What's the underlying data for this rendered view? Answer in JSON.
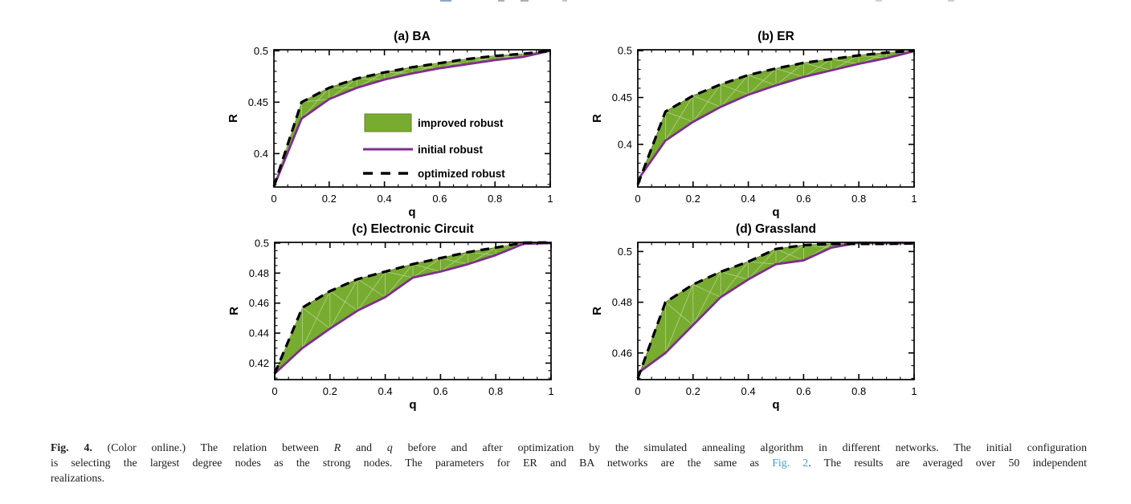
{
  "figure_label": "Fig. 4",
  "colors": {
    "improved_fill": "#77ac30",
    "improved_edge": "#6b7f23",
    "initial_line": "#7e2f8e",
    "optimized_line": "#000000",
    "axes": "#000000",
    "mesh_line": "#ffffff",
    "caption_text": "#1c1c1c",
    "link_blue": "#35a0d2"
  },
  "legend": {
    "items": [
      {
        "label": "improved robust",
        "marker": "patch",
        "color": "#77ac30"
      },
      {
        "label": "initial robust",
        "marker": "line",
        "color": "#7e2f8e"
      },
      {
        "label": "optimized robust",
        "marker": "dashed-line",
        "color": "#000000"
      }
    ],
    "position": "inside panel (a)"
  },
  "chart_data": [
    {
      "type": "area",
      "title": "(a) BA",
      "xlabel": "q",
      "ylabel": "R",
      "xlim": [
        0,
        1
      ],
      "ylim": [
        0.3675,
        0.501
      ],
      "xticks": [
        0,
        0.2,
        0.4,
        0.6,
        0.8,
        1
      ],
      "xtick_labels": [
        "0",
        "0.2",
        "0.4",
        "0.6",
        "0.8",
        "1"
      ],
      "x_minor_step": 0.05,
      "yticks": [
        0.4,
        0.45,
        0.5
      ],
      "ytick_labels": [
        "0.4",
        "0.45",
        "0.5"
      ],
      "y_minor_step": 0.01,
      "x": [
        0,
        0.1,
        0.2,
        0.3,
        0.4,
        0.5,
        0.6,
        0.7,
        0.8,
        0.9,
        1
      ],
      "series": [
        {
          "name": "initial robust",
          "values": [
            0.368,
            0.434,
            0.453,
            0.464,
            0.472,
            0.478,
            0.483,
            0.487,
            0.491,
            0.494,
            0.5
          ]
        },
        {
          "name": "optimized robust",
          "values": [
            0.368,
            0.45,
            0.464,
            0.473,
            0.479,
            0.484,
            0.488,
            0.492,
            0.495,
            0.497,
            0.5
          ]
        }
      ],
      "band": "improved robust (green region between the two curves)",
      "grid": false,
      "show_legend": true
    },
    {
      "type": "area",
      "title": "(b) ER",
      "xlabel": "q",
      "ylabel": "R",
      "xlim": [
        0,
        1
      ],
      "ylim": [
        0.3545,
        0.501
      ],
      "xticks": [
        0,
        0.2,
        0.4,
        0.6,
        0.8,
        1
      ],
      "xtick_labels": [
        "0",
        "0.2",
        "0.4",
        "0.6",
        "0.8",
        "1"
      ],
      "x_minor_step": 0.05,
      "yticks": [
        0.4,
        0.45,
        0.5
      ],
      "ytick_labels": [
        "0.4",
        "0.45",
        "0.5"
      ],
      "y_minor_step": 0.01,
      "x": [
        0,
        0.1,
        0.2,
        0.3,
        0.4,
        0.5,
        0.6,
        0.7,
        0.8,
        0.9,
        1
      ],
      "series": [
        {
          "name": "initial robust",
          "values": [
            0.362,
            0.404,
            0.424,
            0.44,
            0.453,
            0.463,
            0.472,
            0.479,
            0.486,
            0.492,
            0.4995
          ]
        },
        {
          "name": "optimized robust",
          "values": [
            0.357,
            0.435,
            0.452,
            0.464,
            0.474,
            0.481,
            0.487,
            0.491,
            0.495,
            0.498,
            0.5
          ]
        }
      ],
      "band": "improved robust (green region between the two curves)",
      "grid": false,
      "show_legend": false
    },
    {
      "type": "area",
      "title": "(c) Electronic Circuit",
      "xlabel": "q",
      "ylabel": "R",
      "xlim": [
        0,
        1
      ],
      "ylim": [
        0.409,
        0.5005
      ],
      "xticks": [
        0,
        0.2,
        0.4,
        0.6,
        0.8,
        1
      ],
      "xtick_labels": [
        "0",
        "0.2",
        "0.4",
        "0.6",
        "0.8",
        "1"
      ],
      "x_minor_step": 0.05,
      "yticks": [
        0.42,
        0.44,
        0.46,
        0.48,
        0.5
      ],
      "ytick_labels": [
        "0.42",
        "0.44",
        "0.46",
        "0.48",
        "0.5"
      ],
      "y_minor_step": 0.005,
      "x": [
        0,
        0.1,
        0.2,
        0.3,
        0.4,
        0.5,
        0.6,
        0.7,
        0.8,
        0.9,
        1
      ],
      "series": [
        {
          "name": "initial robust",
          "values": [
            0.413,
            0.43,
            0.443,
            0.455,
            0.464,
            0.477,
            0.481,
            0.486,
            0.492,
            0.4995,
            0.5
          ]
        },
        {
          "name": "optimized robust",
          "values": [
            0.413,
            0.457,
            0.468,
            0.476,
            0.481,
            0.486,
            0.49,
            0.494,
            0.497,
            0.5003,
            0.5005
          ]
        }
      ],
      "band": "improved robust (green region between the two curves)",
      "grid": false,
      "show_legend": false
    },
    {
      "type": "area",
      "title": "(d) Grassland",
      "xlabel": "q",
      "ylabel": "R",
      "xlim": [
        0,
        1
      ],
      "ylim": [
        0.4495,
        0.5036
      ],
      "xticks": [
        0,
        0.2,
        0.4,
        0.6,
        0.8,
        1
      ],
      "xtick_labels": [
        "0",
        "0.2",
        "0.4",
        "0.6",
        "0.8",
        "1"
      ],
      "x_minor_step": 0.05,
      "yticks": [
        0.46,
        0.48,
        0.5
      ],
      "ytick_labels": [
        "0.46",
        "0.48",
        "0.5"
      ],
      "y_minor_step": 0.005,
      "x": [
        0,
        0.1,
        0.2,
        0.3,
        0.4,
        0.5,
        0.6,
        0.7,
        0.8,
        0.9,
        1
      ],
      "series": [
        {
          "name": "initial robust",
          "values": [
            0.452,
            0.46,
            0.471,
            0.482,
            0.489,
            0.495,
            0.4965,
            0.5015,
            0.5035,
            0.5033,
            0.5033
          ]
        },
        {
          "name": "optimized robust",
          "values": [
            0.45,
            0.48,
            0.487,
            0.492,
            0.496,
            0.501,
            0.5025,
            0.503,
            0.503,
            0.503,
            0.5032
          ]
        }
      ],
      "band": "improved robust (green region between the two curves)",
      "grid": false,
      "show_legend": false
    }
  ],
  "caption": {
    "lines": [
      {
        "segments": [
          {
            "t": "Fig. 4.",
            "s": "bold"
          },
          {
            "t": " (Color online.) The relation between ",
            "s": "normal"
          },
          {
            "t": "R",
            "s": "italic"
          },
          {
            "t": " and ",
            "s": "normal"
          },
          {
            "t": "q",
            "s": "italic"
          },
          {
            "t": " before and after optimization by the simulated annealing algorithm in different networks. The initial configuration",
            "s": "normal"
          }
        ]
      },
      {
        "segments": [
          {
            "t": "is selecting the largest degree nodes as the strong nodes. The parameters for ER and BA networks are the same as ",
            "s": "normal"
          },
          {
            "t": "Fig. 2",
            "s": "link"
          },
          {
            "t": ". The results are averaged over 50 independent",
            "s": "normal"
          }
        ]
      },
      {
        "segments": [
          {
            "t": "realizations.",
            "s": "normal"
          }
        ]
      }
    ]
  }
}
